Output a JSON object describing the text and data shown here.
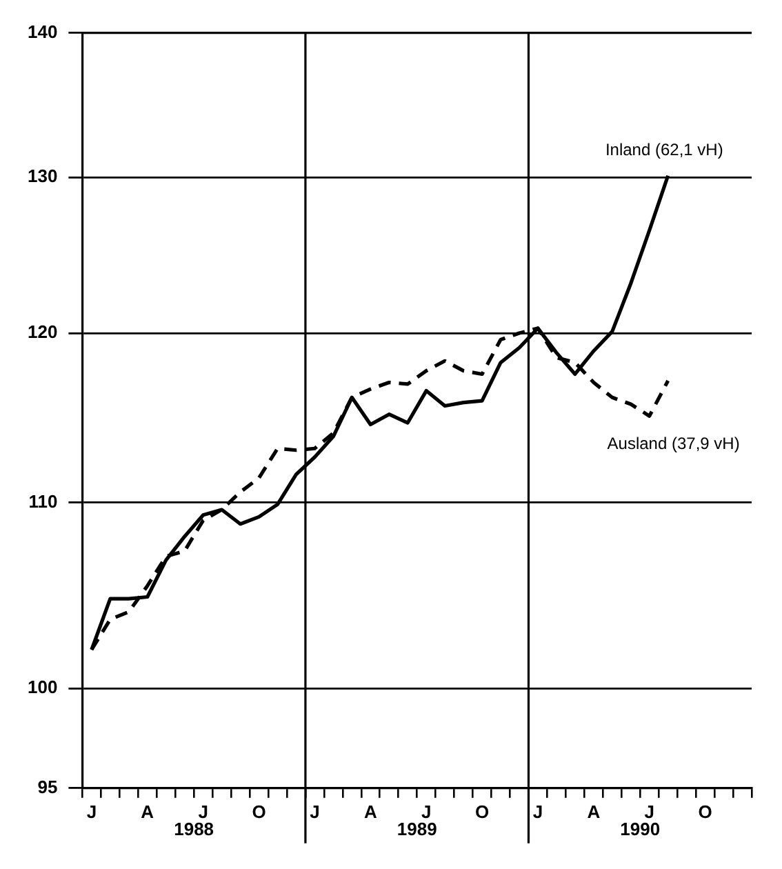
{
  "chart_data": {
    "type": "line",
    "categories": [
      "J",
      null,
      null,
      "A",
      null,
      null,
      "J",
      null,
      null,
      "O",
      null,
      null,
      "J",
      null,
      null,
      "A",
      null,
      null,
      "J",
      null,
      null,
      "O",
      null,
      null,
      "J",
      null,
      null,
      "A",
      null,
      null,
      "J",
      null,
      null,
      "O",
      null,
      null
    ],
    "series": [
      {
        "name": "Inland (62,1 vH)",
        "color": "#000000",
        "line_style": "solid",
        "values": [
          102.0,
          104.7,
          104.7,
          104.8,
          106.8,
          108.1,
          109.3,
          109.6,
          108.8,
          109.2,
          109.9,
          111.6,
          112.6,
          113.8,
          116.1,
          114.5,
          115.1,
          114.6,
          116.5,
          115.6,
          115.8,
          115.9,
          118.2,
          119.1,
          120.3,
          118.8,
          117.5,
          118.9,
          120.1,
          123.1,
          126.5,
          130.1,
          null,
          null,
          null,
          null
        ]
      },
      {
        "name": "Ausland (37,9 vH)",
        "color": "#000000",
        "line_style": "dashed",
        "values": [
          102.0,
          103.6,
          104.0,
          105.4,
          107.0,
          107.3,
          109.0,
          109.6,
          110.6,
          111.4,
          113.1,
          113.0,
          113.1,
          114.0,
          116.1,
          116.6,
          117.0,
          116.9,
          117.7,
          118.3,
          117.7,
          117.5,
          119.6,
          120.0,
          120.3,
          118.5,
          118.2,
          117.0,
          116.1,
          115.7,
          115.0,
          117.1,
          null,
          null,
          null,
          null
        ]
      }
    ],
    "ylim": [
      95,
      140
    ],
    "yticks": [
      95,
      100,
      110,
      120,
      130,
      140
    ],
    "log": "y",
    "grid": "y",
    "legend": false,
    "marker": "none",
    "annotations": [
      "1988",
      "1989",
      "1990"
    ]
  }
}
